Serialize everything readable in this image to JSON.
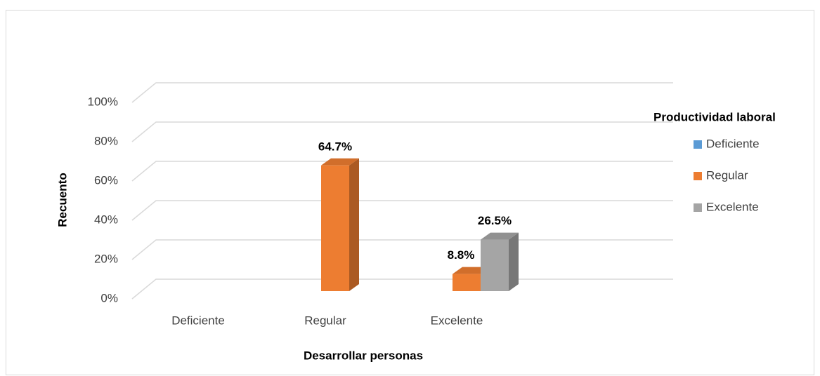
{
  "chart_data": {
    "type": "bar3d",
    "x_label": "Desarrollar personas",
    "y_label": "Recuento",
    "legend_title": "Productividad laboral",
    "legend": "right",
    "grid": true,
    "categories": [
      "Deficiente",
      "Regular",
      "Excelente"
    ],
    "series": [
      {
        "name": "Deficiente",
        "color": "#5b9bd5",
        "values": [
          null,
          null,
          null
        ],
        "value_labels": [
          null,
          null,
          null
        ]
      },
      {
        "name": "Regular",
        "color": "#ed7d31",
        "values": [
          null,
          64.7,
          8.8
        ],
        "value_labels": [
          null,
          "64.7%",
          "8.8%"
        ]
      },
      {
        "name": "Excelente",
        "color": "#a5a5a5",
        "values": [
          null,
          null,
          26.5
        ],
        "value_labels": [
          null,
          null,
          "26.5%"
        ]
      }
    ],
    "ylim": [
      0,
      100
    ],
    "yticks": [
      {
        "value": 0,
        "label": "0%"
      },
      {
        "value": 20,
        "label": "20%"
      },
      {
        "value": 40,
        "label": "40%"
      },
      {
        "value": 60,
        "label": "60%"
      },
      {
        "value": 80,
        "label": "80%"
      },
      {
        "value": 100,
        "label": "100%"
      }
    ]
  }
}
